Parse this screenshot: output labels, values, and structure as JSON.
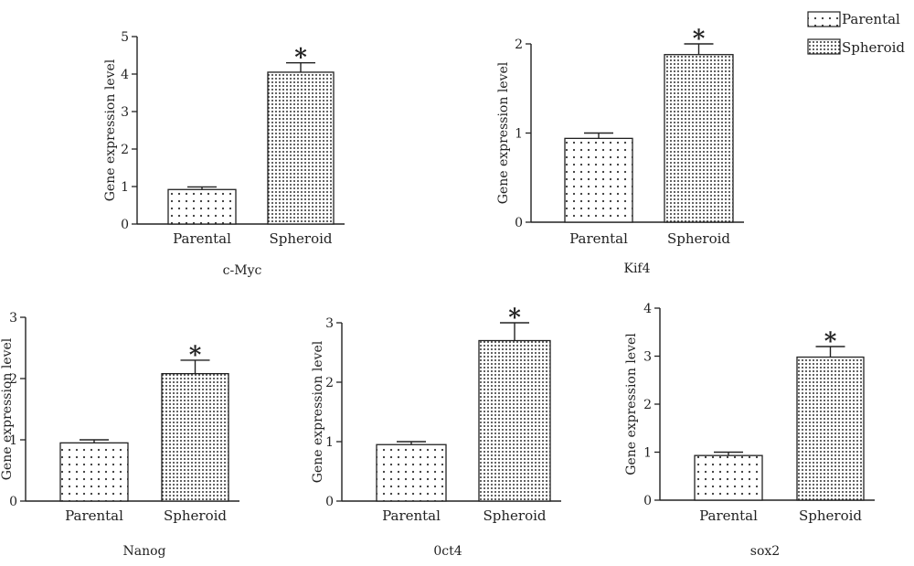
{
  "legend": {
    "items": [
      {
        "label": "Parental",
        "pattern": "sparse-dots"
      },
      {
        "label": "Spheroid",
        "pattern": "dense-dots"
      }
    ]
  },
  "chart_data": [
    {
      "type": "bar",
      "name": "c-Myc",
      "categories": [
        "Parental",
        "Spheroid"
      ],
      "values": [
        0.92,
        4.05
      ],
      "errors": [
        0.07,
        0.25
      ],
      "significance": [
        "",
        "*"
      ],
      "ylabel": "Gene expression level",
      "xlabel": "c-Myc",
      "ylim": [
        0,
        5
      ],
      "yticks": [
        0,
        1,
        2,
        3,
        4,
        5
      ]
    },
    {
      "type": "bar",
      "name": "Kif4",
      "categories": [
        "Parental",
        "Spheroid"
      ],
      "values": [
        0.94,
        1.88
      ],
      "errors": [
        0.06,
        0.12
      ],
      "significance": [
        "",
        "*"
      ],
      "ylabel": "Gene expression level",
      "xlabel": "Kif4",
      "ylim": [
        0,
        2
      ],
      "yticks": [
        0,
        1,
        2
      ]
    },
    {
      "type": "bar",
      "name": "Nanog",
      "categories": [
        "Parental",
        "Spheroid"
      ],
      "values": [
        0.95,
        2.08
      ],
      "errors": [
        0.05,
        0.22
      ],
      "significance": [
        "",
        "*"
      ],
      "ylabel": "Gene expression level",
      "xlabel": "Nanog",
      "ylim": [
        0,
        3
      ],
      "yticks": [
        0,
        1,
        2,
        3
      ]
    },
    {
      "type": "bar",
      "name": "0ct4",
      "categories": [
        "Parental",
        "Spheroid"
      ],
      "values": [
        0.95,
        2.7
      ],
      "errors": [
        0.05,
        0.3
      ],
      "significance": [
        "",
        "*"
      ],
      "ylabel": "Gene expression level",
      "xlabel": "0ct4",
      "ylim": [
        0,
        3
      ],
      "yticks": [
        0,
        1,
        2,
        3
      ]
    },
    {
      "type": "bar",
      "name": "sox2",
      "categories": [
        "Parental",
        "Spheroid"
      ],
      "values": [
        0.93,
        2.98
      ],
      "errors": [
        0.07,
        0.22
      ],
      "significance": [
        "",
        "*"
      ],
      "ylabel": "Gene expression level",
      "xlabel": "sox2",
      "ylim": [
        0,
        4
      ],
      "yticks": [
        0,
        1,
        2,
        3,
        4
      ]
    }
  ]
}
